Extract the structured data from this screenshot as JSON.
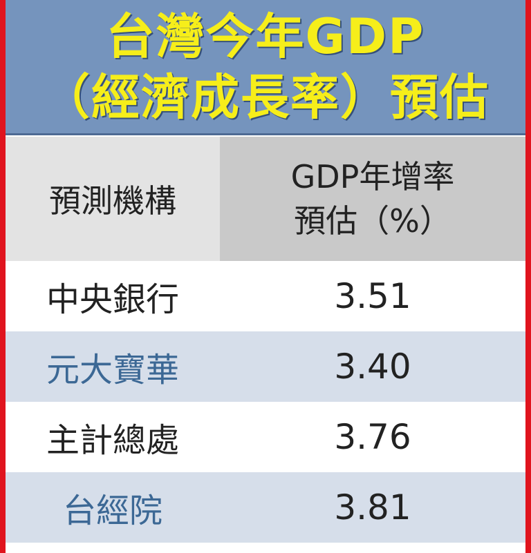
{
  "title": [
    "台灣今年GDP",
    "（經濟成長率）預估"
  ],
  "table": {
    "header": [
      "預測機構",
      [
        "GDP年增率",
        "預估（%）"
      ]
    ],
    "rows": [
      [
        "中央銀行",
        "3.51"
      ],
      [
        "元大寶華",
        "3.40"
      ],
      [
        "主計總處",
        "3.76"
      ],
      [
        "台經院",
        "3.81"
      ]
    ]
  }
}
